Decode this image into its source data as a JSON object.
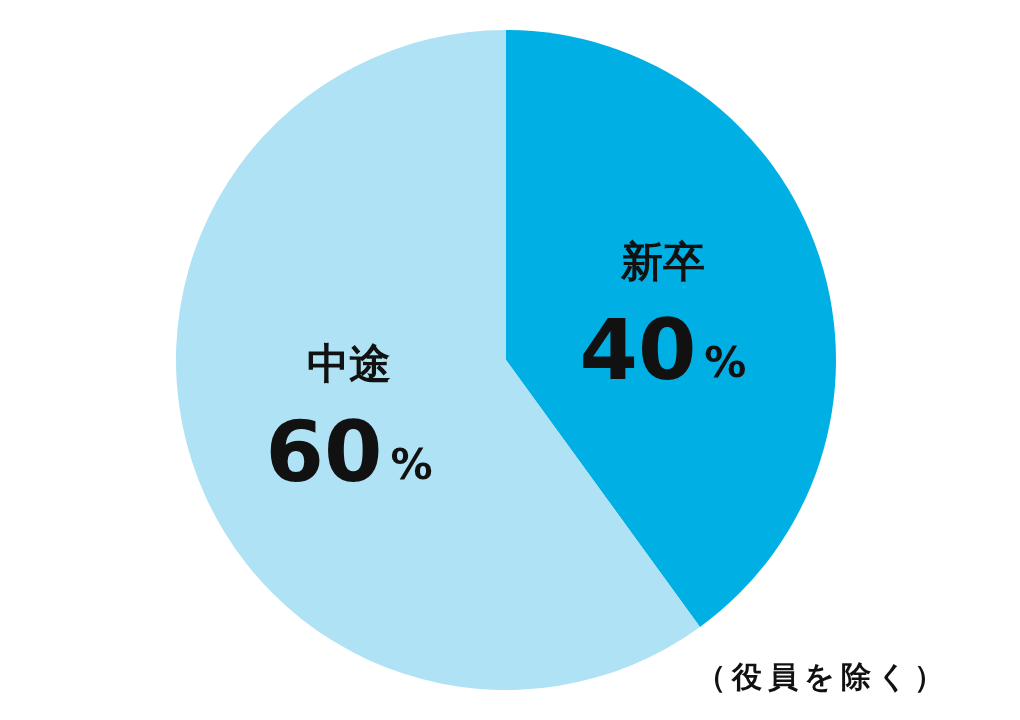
{
  "chart_data": {
    "type": "pie",
    "categories": [
      "新卒",
      "中途"
    ],
    "values": [
      40,
      60
    ],
    "colors": [
      "#00afe3",
      "#aee2f4"
    ],
    "value_labels": [
      "40%",
      "60%"
    ],
    "annotations": [
      "（役員を除く）"
    ]
  }
}
